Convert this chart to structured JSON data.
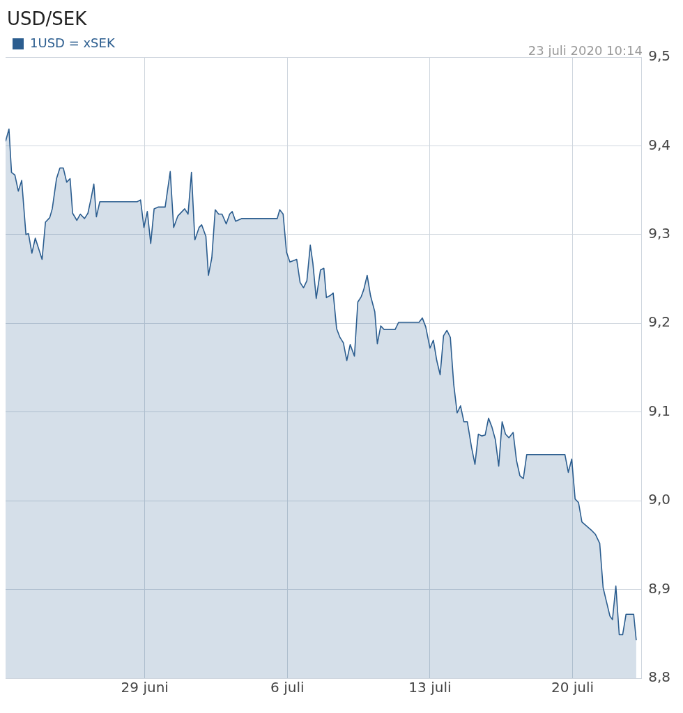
{
  "chart_data": {
    "type": "area",
    "title": "USD/SEK",
    "annotations": [
      "23 juli 2020 10:14"
    ],
    "x": [
      "2020-06-22T04:00",
      "2020-06-22T08:00",
      "2020-06-22T11:00",
      "2020-06-22T15:00",
      "2020-06-22T19:00",
      "2020-06-22T23:00",
      "2020-06-23T04:00",
      "2020-06-23T07:00",
      "2020-06-23T11:00",
      "2020-06-23T15:00",
      "2020-06-23T23:00",
      "2020-06-24T03:00",
      "2020-06-24T08:00",
      "2020-06-24T11:00",
      "2020-06-24T16:00",
      "2020-06-24T20:00",
      "2020-06-25T00:00",
      "2020-06-25T04:00",
      "2020-06-25T08:00",
      "2020-06-25T11:00",
      "2020-06-25T16:00",
      "2020-06-25T20:00",
      "2020-06-26T01:00",
      "2020-06-26T05:00",
      "2020-06-26T09:00",
      "2020-06-26T12:00",
      "2020-06-26T15:00",
      "2020-06-26T19:00",
      "2020-06-28T15:00",
      "2020-06-28T19:00",
      "2020-06-28T23:00",
      "2020-06-29T03:00",
      "2020-06-29T07:00",
      "2020-06-29T11:00",
      "2020-06-29T16:00",
      "2020-06-30T00:00",
      "2020-06-30T06:00",
      "2020-06-30T10:00",
      "2020-06-30T15:00",
      "2020-06-30T23:00",
      "2020-07-01T03:00",
      "2020-07-01T07:00",
      "2020-07-01T11:00",
      "2020-07-01T16:00",
      "2020-07-01T19:00",
      "2020-07-02T00:00",
      "2020-07-02T03:00",
      "2020-07-02T07:00",
      "2020-07-02T11:00",
      "2020-07-02T15:00",
      "2020-07-02T19:00",
      "2020-07-03T00:00",
      "2020-07-03T04:00",
      "2020-07-03T07:00",
      "2020-07-03T11:00",
      "2020-07-03T18:00",
      "2020-07-05T12:00",
      "2020-07-05T15:00",
      "2020-07-05T19:00",
      "2020-07-05T23:00",
      "2020-07-06T03:00",
      "2020-07-06T11:00",
      "2020-07-06T15:00",
      "2020-07-06T19:00",
      "2020-07-06T23:00",
      "2020-07-07T03:00",
      "2020-07-07T06:00",
      "2020-07-07T10:00",
      "2020-07-07T15:00",
      "2020-07-07T19:00",
      "2020-07-07T22:00",
      "2020-07-08T02:00",
      "2020-07-08T06:00",
      "2020-07-08T10:00",
      "2020-07-08T14:00",
      "2020-07-08T18:00",
      "2020-07-08T22:00",
      "2020-07-09T02:00",
      "2020-07-09T07:00",
      "2020-07-09T11:00",
      "2020-07-09T15:00",
      "2020-07-09T18:00",
      "2020-07-09T22:00",
      "2020-07-10T02:00",
      "2020-07-10T07:00",
      "2020-07-10T10:00",
      "2020-07-10T14:00",
      "2020-07-10T18:00",
      "2020-07-11T07:00",
      "2020-07-11T11:00",
      "2020-07-12T11:00",
      "2020-07-12T15:00",
      "2020-07-12T19:00",
      "2020-07-13T00:00",
      "2020-07-13T04:00",
      "2020-07-13T08:00",
      "2020-07-13T12:00",
      "2020-07-13T16:00",
      "2020-07-13T20:00",
      "2020-07-14T00:00",
      "2020-07-14T04:00",
      "2020-07-14T08:00",
      "2020-07-14T12:00",
      "2020-07-14T16:00",
      "2020-07-14T20:00",
      "2020-07-15T01:00",
      "2020-07-15T05:00",
      "2020-07-15T09:00",
      "2020-07-15T13:00",
      "2020-07-15T17:00",
      "2020-07-15T21:00",
      "2020-07-16T01:00",
      "2020-07-16T05:00",
      "2020-07-16T09:00",
      "2020-07-16T13:00",
      "2020-07-16T17:00",
      "2020-07-16T21:00",
      "2020-07-17T02:00",
      "2020-07-17T06:00",
      "2020-07-17T10:00",
      "2020-07-17T14:00",
      "2020-07-17T18:00",
      "2020-07-19T15:00",
      "2020-07-19T19:00",
      "2020-07-19T23:00",
      "2020-07-20T03:00",
      "2020-07-20T07:00",
      "2020-07-20T11:00",
      "2020-07-20T23:00",
      "2020-07-21T03:00",
      "2020-07-21T08:00",
      "2020-07-21T12:00",
      "2020-07-21T16:00",
      "2020-07-21T20:00",
      "2020-07-21T23:00",
      "2020-07-22T03:00",
      "2020-07-22T07:00",
      "2020-07-22T11:00",
      "2020-07-22T15:00",
      "2020-07-23T00:00",
      "2020-07-23T03:00"
    ],
    "series": [
      {
        "name": "1USD = xSEK",
        "color": "#2b5d8f",
        "values": [
          9.405,
          9.419,
          9.37,
          9.367,
          9.349,
          9.361,
          9.3,
          9.301,
          9.279,
          9.296,
          9.272,
          9.314,
          9.319,
          9.329,
          9.363,
          9.375,
          9.375,
          9.359,
          9.363,
          9.324,
          9.316,
          9.323,
          9.318,
          9.324,
          9.342,
          9.357,
          9.32,
          9.337,
          9.337,
          9.339,
          9.308,
          9.326,
          9.29,
          9.329,
          9.331,
          9.331,
          9.371,
          9.308,
          9.321,
          9.329,
          9.323,
          9.37,
          9.294,
          9.308,
          9.311,
          9.298,
          9.254,
          9.274,
          9.328,
          9.323,
          9.323,
          9.312,
          9.323,
          9.326,
          9.315,
          9.318,
          9.318,
          9.328,
          9.323,
          9.28,
          9.269,
          9.272,
          9.246,
          9.24,
          9.248,
          9.288,
          9.268,
          9.228,
          9.26,
          9.262,
          9.229,
          9.231,
          9.234,
          9.194,
          9.184,
          9.178,
          9.158,
          9.176,
          9.163,
          9.224,
          9.23,
          9.238,
          9.254,
          9.231,
          9.213,
          9.177,
          9.197,
          9.193,
          9.193,
          9.201,
          9.201,
          9.206,
          9.196,
          9.172,
          9.181,
          9.158,
          9.142,
          9.186,
          9.192,
          9.184,
          9.131,
          9.099,
          9.107,
          9.089,
          9.089,
          9.06,
          9.041,
          9.075,
          9.073,
          9.074,
          9.093,
          9.083,
          9.069,
          9.039,
          9.089,
          9.075,
          9.071,
          9.077,
          9.045,
          9.028,
          9.025,
          9.052,
          9.052,
          9.032,
          9.047,
          9.002,
          8.998,
          8.976,
          8.966,
          8.962,
          8.952,
          8.902,
          8.886,
          8.87,
          8.866,
          8.904,
          8.849,
          8.849,
          8.872,
          8.872,
          8.843
        ]
      }
    ],
    "xlim": [
      "2020-06-22T04:00",
      "2020-07-23T09:00"
    ],
    "xticks": [
      {
        "value": "2020-06-29",
        "label": "29 juni"
      },
      {
        "value": "2020-07-06",
        "label": "6 juli"
      },
      {
        "value": "2020-07-13",
        "label": "13 juli"
      },
      {
        "value": "2020-07-20",
        "label": "20 juli"
      }
    ],
    "ylim": [
      8.8,
      9.5
    ],
    "yticks": [
      {
        "value": 8.8,
        "label": "8,8"
      },
      {
        "value": 8.9,
        "label": "8,9"
      },
      {
        "value": 9.0,
        "label": "9,0"
      },
      {
        "value": 9.1,
        "label": "9,1"
      },
      {
        "value": 9.2,
        "label": "9,2"
      },
      {
        "value": 9.3,
        "label": "9,3"
      },
      {
        "value": 9.4,
        "label": "9,4"
      },
      {
        "value": 9.5,
        "label": "9,5"
      }
    ],
    "grid": true,
    "legend": "top left",
    "marker": "none",
    "line_style": "solid"
  }
}
